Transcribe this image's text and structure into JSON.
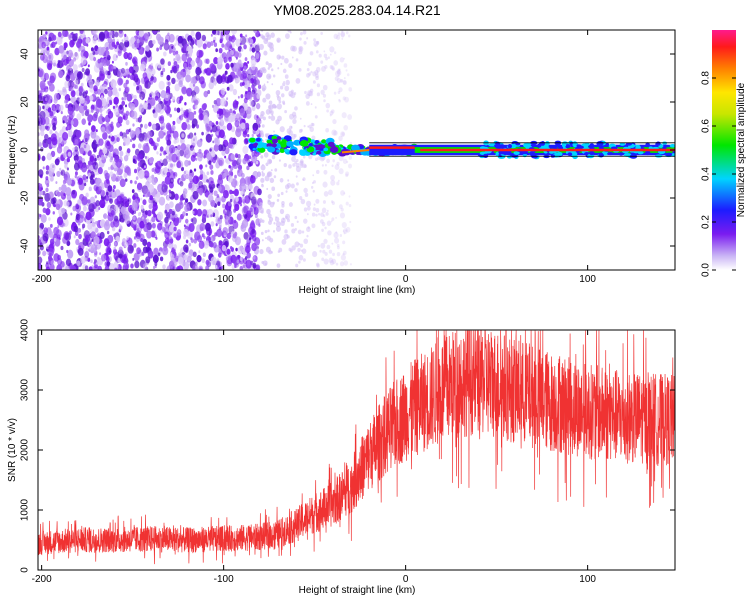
{
  "title": "YM08.2025.283.04.14.R21",
  "chart_data": [
    {
      "type": "heatmap",
      "xlabel": "Height of straight line (km)",
      "ylabel": "Frequency (Hz)",
      "xlim": [
        -202,
        148
      ],
      "ylim": [
        -50,
        50
      ],
      "xticks": [
        -200,
        -100,
        0,
        100
      ],
      "yticks": [
        -40,
        -20,
        0,
        20,
        40
      ],
      "colorbar": {
        "label": "Normalized spectral amplitude",
        "range": [
          0,
          1
        ],
        "ticks": [
          "0.0",
          "0.2",
          "0.4",
          "0.6",
          "0.8"
        ]
      },
      "description_values": {
        "noise_region_x": [
          -202,
          -80
        ],
        "fading_noise_x": [
          -80,
          -30
        ],
        "signal_line_freq_hz": 0,
        "signal_onset_x": -82,
        "strong_signal_x": [
          10,
          148
        ]
      }
    },
    {
      "type": "line",
      "xlabel": "Height of straight line (km)",
      "ylabel": "SNR (10 * v/v)",
      "xlim": [
        -202,
        148
      ],
      "ylim": [
        0,
        4000
      ],
      "xticks": [
        -200,
        -100,
        0,
        100
      ],
      "yticks": [
        0,
        1000,
        2000,
        3000,
        4000
      ],
      "color": "#f03232",
      "series": [
        {
          "name": "SNR",
          "x": [
            -202,
            -180,
            -160,
            -140,
            -120,
            -100,
            -80,
            -70,
            -60,
            -50,
            -40,
            -30,
            -20,
            -10,
            0,
            10,
            20,
            30,
            40,
            50,
            60,
            80,
            100,
            120,
            148
          ],
          "y": [
            450,
            500,
            500,
            520,
            500,
            520,
            550,
            600,
            750,
            950,
            1100,
            1400,
            1900,
            2300,
            2600,
            2800,
            3000,
            3150,
            3200,
            3100,
            3000,
            2800,
            2650,
            2550,
            2500
          ]
        }
      ]
    }
  ]
}
